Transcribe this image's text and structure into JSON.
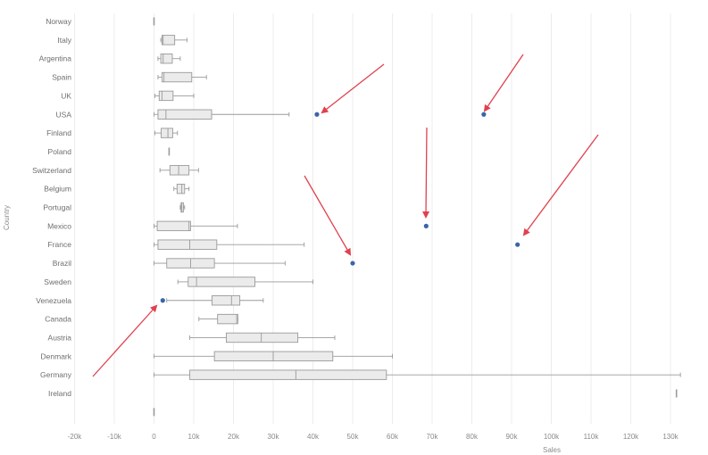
{
  "chart_data": {
    "type": "boxplot",
    "orientation": "horizontal",
    "xlabel": "Sales",
    "ylabel": "Country",
    "xlim": [
      -20000,
      135000
    ],
    "x_ticks": [
      {
        "v": -20000,
        "label": "-20k"
      },
      {
        "v": -10000,
        "label": "-10k"
      },
      {
        "v": 0,
        "label": "0"
      },
      {
        "v": 10000,
        "label": "10k"
      },
      {
        "v": 20000,
        "label": "20k"
      },
      {
        "v": 30000,
        "label": "30k"
      },
      {
        "v": 40000,
        "label": "40k"
      },
      {
        "v": 50000,
        "label": "50k"
      },
      {
        "v": 60000,
        "label": "60k"
      },
      {
        "v": 70000,
        "label": "70k"
      },
      {
        "v": 80000,
        "label": "80k"
      },
      {
        "v": 90000,
        "label": "90k"
      },
      {
        "v": 100000,
        "label": "100k"
      },
      {
        "v": 110000,
        "label": "110k"
      },
      {
        "v": 120000,
        "label": "120k"
      },
      {
        "v": 130000,
        "label": "130k"
      }
    ],
    "grid": "vertical",
    "colors": {
      "box_fill": "#ebebeb",
      "box_stroke": "#9a9a9a",
      "outlier": "#3a66a8",
      "arrow": "#e0414e",
      "grid": "#ececec"
    },
    "categories": [
      "Norway",
      "Italy",
      "Argentina",
      "Spain",
      "UK",
      "USA",
      "Finland",
      "Poland",
      "Switzerland",
      "Belgium",
      "Portugal",
      "Mexico",
      "France",
      "Brazil",
      "Sweden",
      "Venezuela",
      "Canada",
      "Austria",
      "Denmark",
      "Germany",
      "Ireland",
      ""
    ],
    "boxes": [
      {
        "country": "Norway",
        "min": 0,
        "q1": 0,
        "median": 0,
        "q3": 0,
        "max": 0
      },
      {
        "country": "Italy",
        "min": 1700,
        "q1": 2000,
        "median": 2300,
        "q3": 5200,
        "max": 8300
      },
      {
        "country": "Argentina",
        "min": 1000,
        "q1": 1700,
        "median": 2300,
        "q3": 4600,
        "max": 6600
      },
      {
        "country": "Spain",
        "min": 1000,
        "q1": 2000,
        "median": 2500,
        "q3": 9500,
        "max": 13200
      },
      {
        "country": "UK",
        "min": 200,
        "q1": 1300,
        "median": 2000,
        "q3": 4800,
        "max": 10000
      },
      {
        "country": "USA",
        "min": 0,
        "q1": 1000,
        "median": 3000,
        "q3": 14500,
        "max": 34000,
        "outliers": [
          41000,
          83000
        ]
      },
      {
        "country": "Finland",
        "min": 200,
        "q1": 1800,
        "median": 3500,
        "q3": 4700,
        "max": 5900
      },
      {
        "country": "Poland",
        "min": 3800,
        "q1": 3800,
        "median": 3800,
        "q3": 3800,
        "max": 3800
      },
      {
        "country": "Switzerland",
        "min": 1500,
        "q1": 4000,
        "median": 6200,
        "q3": 8800,
        "max": 11200
      },
      {
        "country": "Belgium",
        "min": 5000,
        "q1": 5800,
        "median": 7000,
        "q3": 7700,
        "max": 8800
      },
      {
        "country": "Portugal",
        "min": 6600,
        "q1": 6800,
        "median": 7000,
        "q3": 7400,
        "max": 7700
      },
      {
        "country": "Mexico",
        "min": 0,
        "q1": 800,
        "median": 8800,
        "q3": 9200,
        "max": 21000,
        "outliers": [
          68500
        ]
      },
      {
        "country": "France",
        "min": 0,
        "q1": 1000,
        "median": 9000,
        "q3": 15800,
        "max": 37800,
        "outliers": [
          91500
        ]
      },
      {
        "country": "Brazil",
        "min": 0,
        "q1": 3200,
        "median": 9200,
        "q3": 15200,
        "max": 33000,
        "outliers": [
          50000
        ]
      },
      {
        "country": "Sweden",
        "min": 6000,
        "q1": 8600,
        "median": 10700,
        "q3": 25400,
        "max": 40000
      },
      {
        "country": "Venezuela",
        "min": 3200,
        "q1": 14600,
        "median": 19500,
        "q3": 21600,
        "max": 27500,
        "outliers": [
          2200
        ]
      },
      {
        "country": "Canada",
        "min": 11300,
        "q1": 16000,
        "median": 20800,
        "q3": 21100,
        "max": 21100
      },
      {
        "country": "Austria",
        "min": 9000,
        "q1": 18200,
        "median": 27000,
        "q3": 36200,
        "max": 45500
      },
      {
        "country": "Denmark",
        "min": 0,
        "q1": 15200,
        "median": 30000,
        "q3": 45000,
        "max": 60000
      },
      {
        "country": "Germany",
        "min": 0,
        "q1": 9000,
        "median": 35700,
        "q3": 58500,
        "max": 132500
      },
      {
        "country": "Ireland",
        "min": 131500,
        "q1": 131500,
        "median": 131500,
        "q3": 131500,
        "max": 131500
      },
      {
        "country": "",
        "min": 0,
        "q1": 0,
        "median": 0,
        "q3": 0,
        "max": 0
      }
    ]
  }
}
